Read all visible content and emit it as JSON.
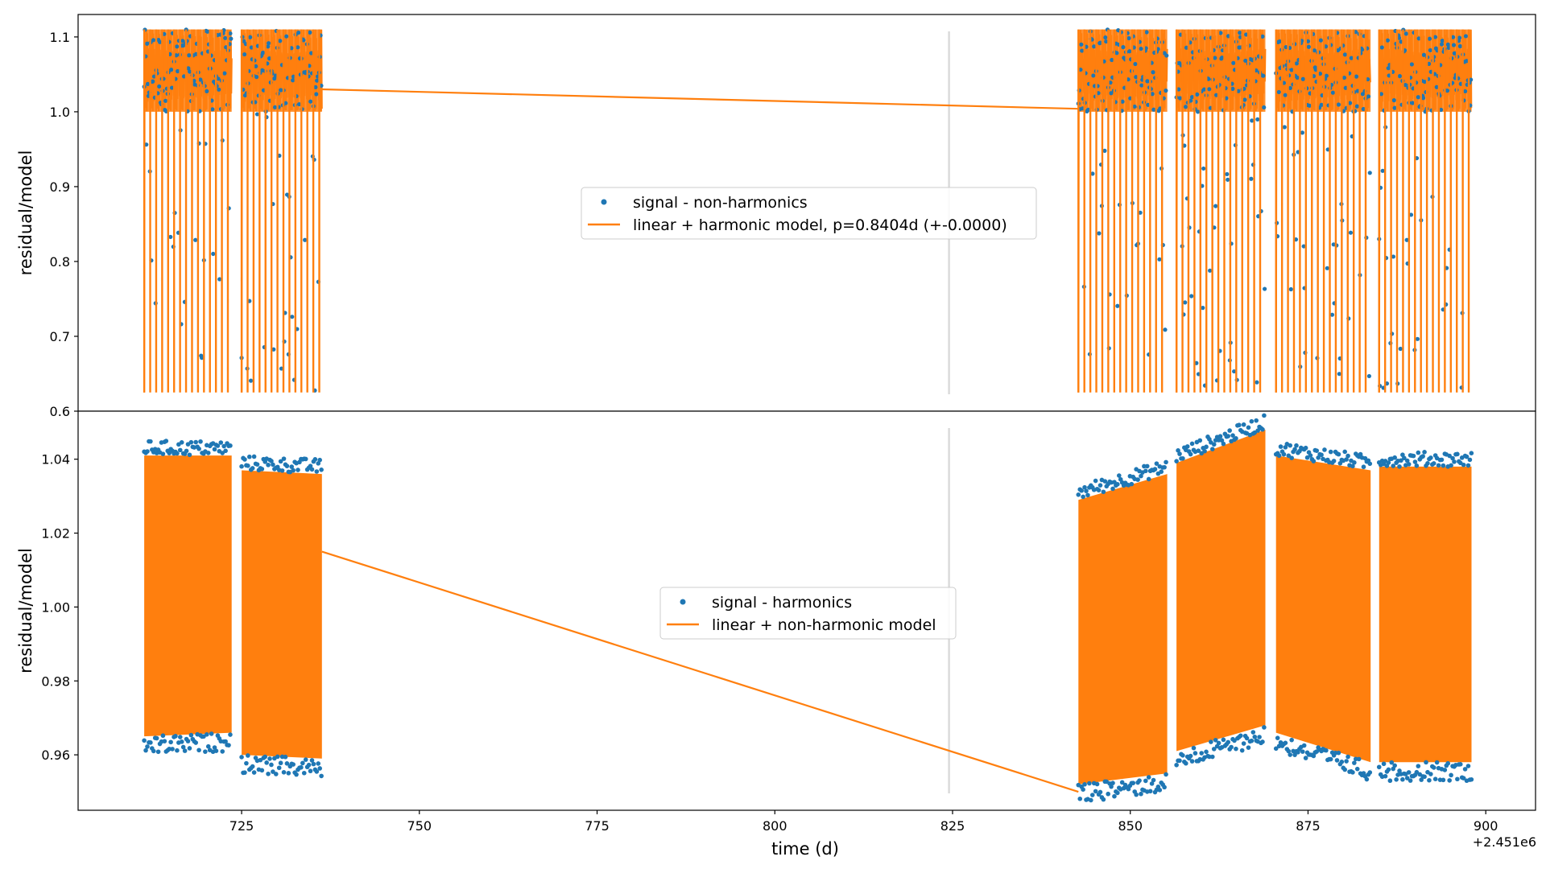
{
  "figure": {
    "offset_text": "+2.451e6",
    "xlabel": "time (d)"
  },
  "colors": {
    "signal": "#1f77b4",
    "model": "#ff7f0e",
    "divider": "#d9d9d9",
    "axes": "#000000"
  },
  "chart_data": [
    {
      "type": "scatter",
      "title": "",
      "xlabel": "",
      "ylabel": "residual/model",
      "xlim": [
        702,
        907
      ],
      "ylim": [
        0.6,
        1.13
      ],
      "x_ticks": [
        725,
        750,
        775,
        800,
        825,
        850,
        875,
        900
      ],
      "y_ticks": [
        {
          "v": 0.6,
          "label": "0.6"
        },
        {
          "v": 0.7,
          "label": "0.7"
        },
        {
          "v": 0.8,
          "label": "0.8"
        },
        {
          "v": 0.9,
          "label": "0.9"
        },
        {
          "v": 1.0,
          "label": "1.0"
        },
        {
          "v": 1.1,
          "label": "1.1"
        }
      ],
      "vertical_line_x": 824.5,
      "segments": [
        [
          711.3,
          723.6
        ],
        [
          725.0,
          736.3
        ],
        [
          842.7,
          855.2
        ],
        [
          856.5,
          869.0
        ],
        [
          870.5,
          883.8
        ],
        [
          885.0,
          898.0
        ]
      ],
      "period_d": 0.8404,
      "signal_range": [
        0.625,
        1.11
      ],
      "model_kind": "eclipse",
      "legend_placement": "center",
      "series": [
        {
          "name": "signal - non-harmonics",
          "kind": "points",
          "color": "#1f77b4"
        },
        {
          "name": "linear + harmonic model, p=0.8404d (+-0.0000)",
          "kind": "line",
          "color": "#ff7f0e"
        }
      ]
    },
    {
      "type": "scatter",
      "title": "",
      "xlabel": "time (d)",
      "ylabel": "residual/model",
      "xlim": [
        702,
        907
      ],
      "ylim": [
        0.945,
        1.053
      ],
      "x_ticks": [
        725,
        750,
        775,
        800,
        825,
        850,
        875,
        900
      ],
      "y_ticks": [
        {
          "v": 0.96,
          "label": "0.96"
        },
        {
          "v": 0.98,
          "label": "0.98"
        },
        {
          "v": 1.0,
          "label": "1.00"
        },
        {
          "v": 1.02,
          "label": "1.02"
        },
        {
          "v": 1.04,
          "label": "1.04"
        }
      ],
      "vertical_line_x": 824.5,
      "segments": [
        {
          "start": 711.3,
          "end": 723.6,
          "top": [
            1.041,
            1.041
          ],
          "bottom": [
            0.965,
            0.966
          ]
        },
        {
          "start": 725.0,
          "end": 736.3,
          "top": [
            1.037,
            1.036
          ],
          "bottom": [
            0.96,
            0.959
          ]
        },
        {
          "start": 842.7,
          "end": 855.2,
          "top": [
            1.029,
            1.036
          ],
          "bottom": [
            0.952,
            0.955
          ]
        },
        {
          "start": 856.5,
          "end": 869.0,
          "top": [
            1.039,
            1.048
          ],
          "bottom": [
            0.961,
            0.968
          ]
        },
        {
          "start": 870.5,
          "end": 883.8,
          "top": [
            1.041,
            1.037
          ],
          "bottom": [
            0.966,
            0.958
          ]
        },
        {
          "start": 885.0,
          "end": 898.0,
          "top": [
            1.038,
            1.038
          ],
          "bottom": [
            0.958,
            0.958
          ]
        }
      ],
      "bridge": [
        [
          736.3,
          1.015
        ],
        [
          842.7,
          0.95
        ]
      ],
      "model_kind": "dense",
      "legend_placement": "center",
      "series": [
        {
          "name": "signal - harmonics",
          "kind": "points",
          "color": "#1f77b4"
        },
        {
          "name": "linear + non-harmonic model",
          "kind": "line",
          "color": "#ff7f0e"
        }
      ]
    }
  ]
}
